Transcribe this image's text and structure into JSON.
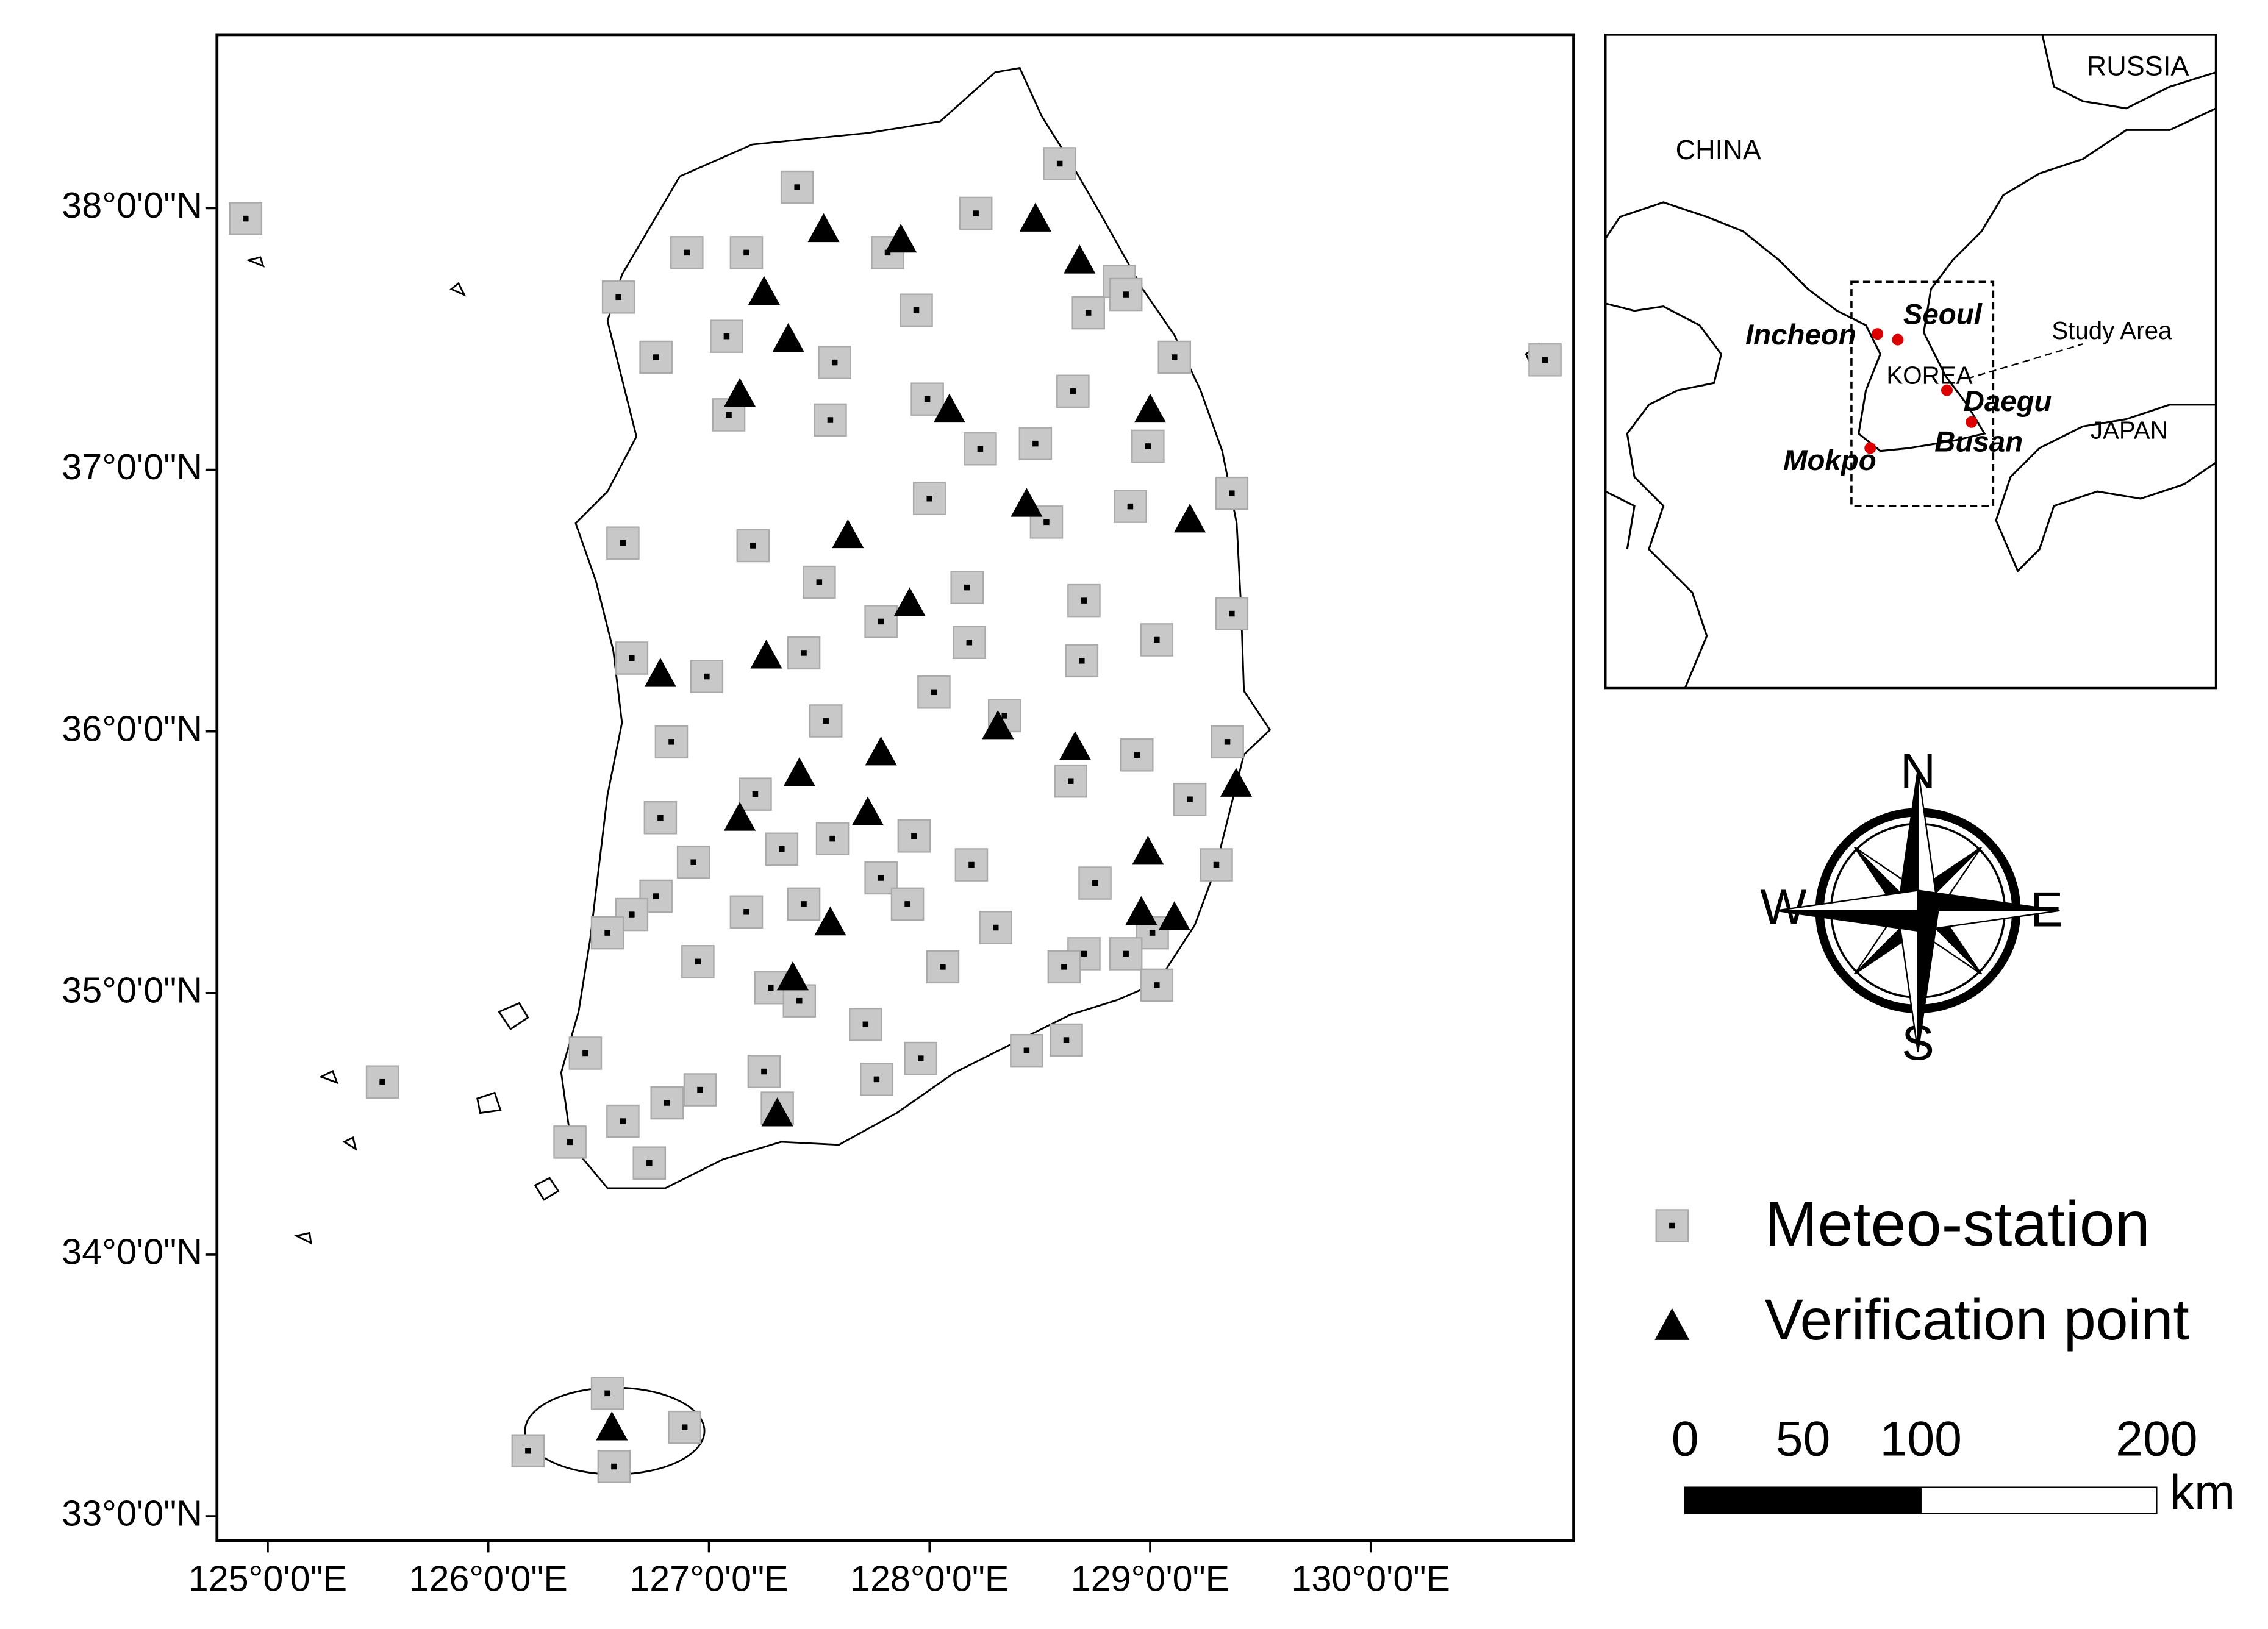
{
  "map": {
    "xlim": [
      124.77,
      130.92
    ],
    "ylim": [
      32.906,
      38.663
    ],
    "xticks": [
      {
        "value": 125,
        "label": "125°0'0\"E"
      },
      {
        "value": 126,
        "label": "126°0'0\"E"
      },
      {
        "value": 127,
        "label": "127°0'0\"E"
      },
      {
        "value": 128,
        "label": "128°0'0\"E"
      },
      {
        "value": 129,
        "label": "129°0'0\"E"
      },
      {
        "value": 130,
        "label": "130°0'0\"E"
      }
    ],
    "yticks": [
      {
        "value": 33,
        "label": "33°0'0\"N"
      },
      {
        "value": 34,
        "label": "34°0'0\"N"
      },
      {
        "value": 35,
        "label": "35°0'0\"N"
      },
      {
        "value": 36,
        "label": "36°0'0\"N"
      },
      {
        "value": 37,
        "label": "37°0'0\"N"
      },
      {
        "value": 38,
        "label": "38°0'0\"N"
      }
    ],
    "stations": {
      "lon": [
        124.9,
        127.4,
        128.59,
        128.21,
        126.9,
        127.17,
        127.81,
        126.59,
        128.86,
        128.89,
        127.94,
        128.72,
        127.08,
        126.76,
        127.57,
        129.11,
        130.79,
        128.65,
        127.99,
        127.09,
        127.55,
        128.48,
        128.23,
        128.99,
        128.0,
        129.37,
        128.91,
        128.53,
        126.61,
        127.2,
        127.5,
        128.17,
        128.7,
        127.78,
        129.37,
        128.18,
        129.03,
        127.43,
        126.65,
        128.69,
        126.99,
        128.02,
        128.34,
        127.53,
        129.35,
        126.83,
        128.94,
        128.64,
        127.21,
        129.18,
        126.78,
        127.56,
        127.33,
        127.93,
        126.93,
        128.19,
        129.3,
        127.78,
        128.75,
        126.76,
        126.65,
        127.43,
        127.9,
        127.17,
        126.54,
        128.3,
        129.01,
        126.95,
        128.06,
        128.7,
        128.61,
        128.89,
        129.03,
        127.28,
        127.41,
        127.71,
        126.44,
        128.44,
        128.62,
        127.96,
        125.52,
        127.25,
        127.76,
        126.96,
        126.81,
        127.31,
        126.61,
        126.37,
        126.73,
        126.54,
        126.89,
        126.18,
        126.57
      ],
      "lat": [
        37.96,
        38.08,
        38.17,
        37.98,
        37.83,
        37.83,
        37.83,
        37.66,
        37.72,
        37.67,
        37.61,
        37.6,
        37.51,
        37.43,
        37.41,
        37.43,
        37.42,
        37.3,
        37.27,
        37.21,
        37.19,
        37.1,
        37.08,
        37.09,
        36.89,
        36.91,
        36.86,
        36.8,
        36.72,
        36.71,
        36.57,
        36.55,
        36.5,
        36.42,
        36.45,
        36.34,
        36.35,
        36.3,
        36.28,
        36.27,
        36.21,
        36.15,
        36.06,
        36.04,
        35.96,
        35.96,
        35.91,
        35.81,
        35.76,
        35.74,
        35.67,
        35.59,
        35.55,
        35.6,
        35.5,
        35.49,
        35.49,
        35.44,
        35.42,
        35.37,
        35.3,
        35.34,
        35.34,
        35.31,
        35.23,
        35.25,
        35.23,
        35.12,
        35.1,
        35.15,
        35.1,
        35.15,
        35.03,
        35.02,
        34.97,
        34.88,
        34.77,
        34.78,
        34.82,
        34.75,
        34.66,
        34.7,
        34.67,
        34.63,
        34.58,
        34.56,
        34.51,
        34.43,
        34.35,
        33.47,
        33.34,
        33.25,
        33.19
      ]
    },
    "verification": {
      "lon": [
        127.52,
        127.87,
        128.48,
        128.68,
        127.25,
        127.36,
        127.14,
        128.09,
        129.0,
        128.44,
        129.18,
        127.63,
        127.91,
        126.78,
        127.26,
        128.31,
        128.66,
        127.78,
        127.41,
        129.39,
        127.14,
        127.72,
        128.99,
        127.55,
        128.96,
        129.11,
        127.38,
        127.31,
        126.56
      ],
      "lat": [
        37.92,
        37.88,
        37.96,
        37.8,
        37.68,
        37.5,
        37.29,
        37.23,
        37.23,
        36.87,
        36.81,
        36.75,
        36.49,
        36.22,
        36.29,
        36.02,
        35.94,
        35.92,
        35.84,
        35.8,
        35.67,
        35.69,
        35.54,
        35.27,
        35.31,
        35.29,
        35.06,
        34.54,
        33.34
      ]
    }
  },
  "inset": {
    "china": "CHINA",
    "russia": "RUSSIA",
    "korea": "KOREA",
    "japan": "JAPAN",
    "study_area": "Study Area",
    "cities": [
      "Seoul",
      "Incheon",
      "Daegu",
      "Busan",
      "Mokpo"
    ]
  },
  "compass": {
    "n": "N",
    "s": "S",
    "e": "E",
    "w": "W"
  },
  "legend": {
    "station": "Meteo-station",
    "verification": "Verification point"
  },
  "scale_bar": {
    "ticks": [
      0,
      50,
      100,
      200
    ],
    "unit": "km"
  }
}
